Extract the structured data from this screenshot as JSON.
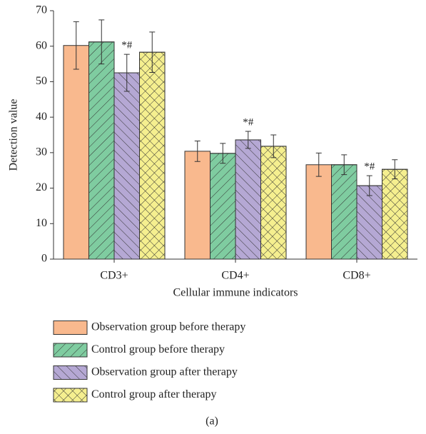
{
  "chart_data": {
    "type": "bar",
    "ylabel": "Detection value",
    "xlabel": "Cellular immune indicators",
    "caption": "(a)",
    "categories": [
      "CD3+",
      "CD4+",
      "CD8+"
    ],
    "ylim": [
      0,
      70
    ],
    "yticks": [
      0,
      10,
      20,
      30,
      40,
      50,
      60,
      70
    ],
    "series": [
      {
        "name": "Observation group before therapy",
        "color": "#f9b98e",
        "pattern": "none",
        "values": [
          60.2,
          30.4,
          26.6
        ],
        "errors": [
          6.7,
          2.9,
          3.3
        ]
      },
      {
        "name": "Control group before therapy",
        "color": "#7fcca0",
        "pattern": "forward",
        "values": [
          61.2,
          29.8,
          26.6
        ],
        "errors": [
          6.2,
          2.8,
          2.8
        ]
      },
      {
        "name": "Observation group after therapy",
        "color": "#b5a8d4",
        "pattern": "backward",
        "values": [
          52.5,
          33.6,
          20.7
        ],
        "errors": [
          5.2,
          2.4,
          2.8
        ],
        "annotations": [
          "*#",
          "*#",
          "*#"
        ]
      },
      {
        "name": "Control group after therapy",
        "color": "#f5ef8f",
        "pattern": "cross",
        "values": [
          58.3,
          31.8,
          25.3
        ],
        "errors": [
          5.7,
          3.2,
          2.7
        ]
      }
    ]
  }
}
